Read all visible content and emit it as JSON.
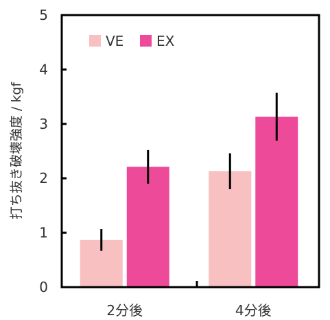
{
  "chart_data": {
    "type": "bar",
    "categories": [
      "2分後",
      "4分後"
    ],
    "series": [
      {
        "name": "VE",
        "values": [
          0.87,
          2.13
        ],
        "errors": [
          0.2,
          0.33
        ],
        "color": "#f8c0c0"
      },
      {
        "name": "EX",
        "values": [
          2.21,
          3.13
        ],
        "errors": [
          0.31,
          0.44
        ],
        "color": "#ee4a9a"
      }
    ],
    "ylabel": "打ち抜き破壊強度 / kgf",
    "ylim": [
      0,
      5
    ],
    "yticks": [
      0,
      1,
      2,
      3,
      4,
      5
    ],
    "grid": false,
    "legend_position": "top-left"
  }
}
